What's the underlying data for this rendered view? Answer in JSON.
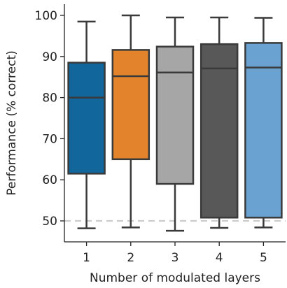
{
  "chart_data": {
    "type": "box",
    "xlabel": "Number of modulated layers",
    "ylabel": "Performance (% correct)",
    "categories": [
      "1",
      "2",
      "3",
      "4",
      "5"
    ],
    "ylim": [
      45,
      103
    ],
    "yticks": [
      50,
      60,
      70,
      80,
      90,
      100
    ],
    "reference_line": {
      "y": 50,
      "style": "dashed",
      "color": "#cccccc"
    },
    "boxes": [
      {
        "category": "1",
        "whisker_low": 48.2,
        "q1": 61.5,
        "median": 80.0,
        "q3": 88.5,
        "whisker_high": 98.5,
        "color": "#11679c"
      },
      {
        "category": "2",
        "whisker_low": 48.4,
        "q1": 65.0,
        "median": 85.2,
        "q3": 91.6,
        "whisker_high": 100.0,
        "color": "#e3832b"
      },
      {
        "category": "3",
        "whisker_low": 47.6,
        "q1": 59.0,
        "median": 86.1,
        "q3": 92.4,
        "whisker_high": 99.5,
        "color": "#a6a6a6"
      },
      {
        "category": "4",
        "whisker_low": 48.3,
        "q1": 50.8,
        "median": 87.1,
        "q3": 93.0,
        "whisker_high": 99.5,
        "color": "#585858"
      },
      {
        "category": "5",
        "whisker_low": 48.4,
        "q1": 50.8,
        "median": 87.3,
        "q3": 93.3,
        "whisker_high": 99.4,
        "color": "#6aa3d2"
      }
    ],
    "grid": false
  }
}
